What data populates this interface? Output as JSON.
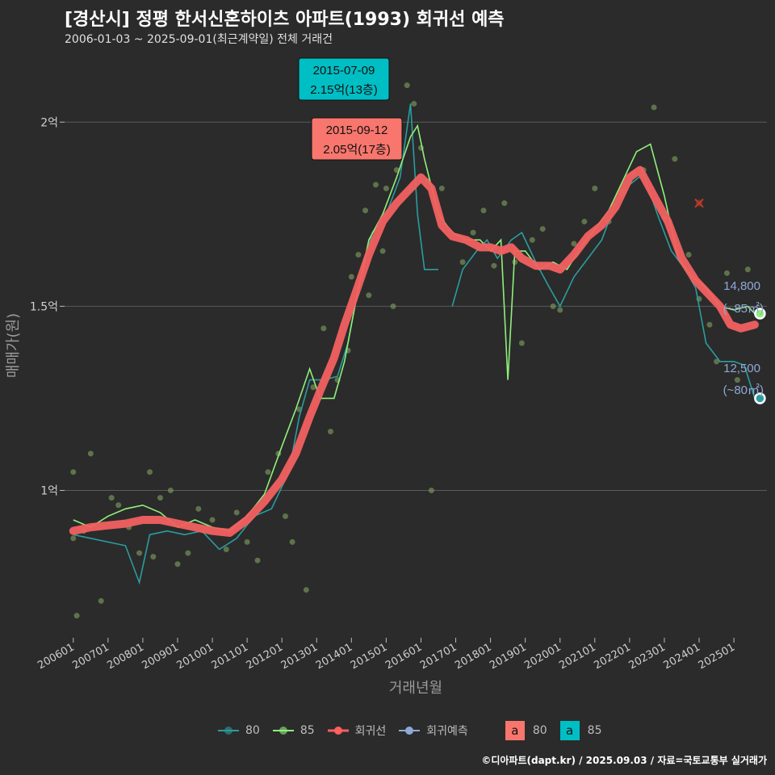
{
  "header": {
    "title": "[경산시] 정평 한서신혼하이츠 아파트(1993) 회귀선 예측",
    "subtitle": "2006-01-03 ~ 2025-09-01(최근계약일) 전체 거래건"
  },
  "footer": "©디아파트(dapt.kr) / 2025.09.03 / 자료=국토교통부 실거래가",
  "legend": {
    "items": [
      {
        "label": "80",
        "color": "#2a9d9f"
      },
      {
        "label": "85",
        "color": "#8ff07a"
      },
      {
        "label": "회귀선",
        "color": "#ff5f5f"
      },
      {
        "label": "회귀예측",
        "color": "#8fa9d8"
      }
    ],
    "boxes": [
      {
        "glyph": "a",
        "label": "80",
        "color": "#f8766d"
      },
      {
        "glyph": "a",
        "label": "85",
        "color": "#00bfc4"
      }
    ]
  },
  "annotations": {
    "max85": {
      "date": "2015-07-09",
      "price": "2.15억(13층)",
      "color": "#00bfc4"
    },
    "max80": {
      "date": "2015-09-12",
      "price": "2.05억(17층)",
      "color": "#f8766d"
    },
    "pred85": {
      "value": "14,800",
      "area": "(~85㎡)"
    },
    "pred80": {
      "value": "12,500",
      "area": "(~80㎡)"
    }
  },
  "colors": {
    "bg": "#2b2b2b",
    "grid": "#5a5a5a",
    "s80": "#2a9d9f",
    "s85": "#8ff07a",
    "reg": "#f26060",
    "pred": "#8fa9d8",
    "points": "#7a9a5c"
  },
  "chart_data": {
    "type": "line",
    "xlabel": "거래년월",
    "ylabel": "매매가(원)",
    "x_ticks": [
      "200601",
      "200701",
      "200801",
      "200901",
      "201001",
      "201101",
      "201201",
      "201301",
      "201401",
      "201501",
      "201601",
      "201701",
      "201801",
      "201901",
      "202001",
      "202101",
      "202201",
      "202301",
      "202401",
      "202501"
    ],
    "y_ticks": [
      {
        "value": 10000,
        "label": "1억"
      },
      {
        "value": 15000,
        "label": "1.5억"
      },
      {
        "value": 20000,
        "label": "2억"
      }
    ],
    "ylim": [
      6000,
      22000
    ],
    "xlim": [
      2005.75,
      2025.95
    ],
    "series": [
      {
        "name": "80",
        "points": [
          [
            2006.0,
            8800
          ],
          [
            2006.5,
            8700
          ],
          [
            2007.0,
            8600
          ],
          [
            2007.5,
            8500
          ],
          [
            2007.9,
            7500
          ],
          [
            2008.2,
            8800
          ],
          [
            2008.7,
            8900
          ],
          [
            2009.2,
            8800
          ],
          [
            2009.7,
            8900
          ],
          [
            2010.2,
            8400
          ],
          [
            2010.7,
            8700
          ],
          [
            2011.2,
            9300
          ],
          [
            2011.7,
            9500
          ],
          [
            2012.2,
            10500
          ],
          [
            2012.5,
            12000
          ],
          [
            2012.8,
            13000
          ],
          [
            2013.2,
            13000
          ],
          [
            2013.6,
            13100
          ],
          [
            2013.9,
            14000
          ],
          [
            2014.2,
            15500
          ],
          [
            2014.6,
            17000
          ],
          [
            2015.0,
            17500
          ],
          [
            2015.4,
            18500
          ],
          [
            2015.7,
            20500
          ],
          [
            2015.9,
            17500
          ],
          [
            2016.1,
            16000
          ],
          [
            2016.5,
            16000
          ]
        ]
      },
      {
        "name": "80b",
        "points": [
          [
            2016.9,
            15000
          ],
          [
            2017.2,
            16000
          ],
          [
            2017.6,
            16500
          ],
          [
            2017.9,
            16800
          ],
          [
            2018.2,
            16300
          ],
          [
            2018.6,
            16800
          ],
          [
            2018.9,
            17000
          ],
          [
            2019.3,
            16200
          ],
          [
            2019.7,
            15500
          ],
          [
            2020.0,
            15000
          ],
          [
            2020.4,
            15800
          ],
          [
            2020.8,
            16300
          ],
          [
            2021.2,
            16800
          ],
          [
            2021.6,
            17800
          ],
          [
            2022.0,
            18300
          ],
          [
            2022.4,
            18600
          ],
          [
            2022.8,
            17500
          ],
          [
            2023.2,
            16500
          ],
          [
            2023.6,
            16000
          ],
          [
            2023.9,
            15500
          ],
          [
            2024.2,
            14000
          ],
          [
            2024.6,
            13500
          ],
          [
            2025.0,
            13500
          ],
          [
            2025.3,
            13400
          ],
          [
            2025.6,
            12500
          ]
        ]
      },
      {
        "name": "85",
        "points": [
          [
            2006.0,
            9200
          ],
          [
            2006.5,
            9000
          ],
          [
            2007.0,
            9300
          ],
          [
            2007.5,
            9500
          ],
          [
            2008.0,
            9600
          ],
          [
            2008.5,
            9400
          ],
          [
            2009.0,
            9000
          ],
          [
            2009.5,
            9200
          ],
          [
            2010.0,
            9000
          ],
          [
            2010.5,
            8900
          ],
          [
            2011.0,
            9300
          ],
          [
            2011.5,
            9900
          ],
          [
            2012.0,
            11200
          ],
          [
            2012.4,
            12200
          ],
          [
            2012.8,
            13300
          ],
          [
            2013.1,
            12500
          ],
          [
            2013.5,
            12500
          ],
          [
            2013.8,
            13500
          ],
          [
            2014.1,
            15000
          ],
          [
            2014.5,
            16800
          ],
          [
            2014.9,
            17500
          ],
          [
            2015.3,
            18500
          ],
          [
            2015.7,
            19600
          ],
          [
            2015.9,
            19900
          ],
          [
            2016.1,
            19000
          ],
          [
            2016.5,
            17500
          ],
          [
            2016.9,
            17000
          ],
          [
            2017.3,
            16800
          ],
          [
            2017.7,
            16800
          ],
          [
            2018.0,
            16500
          ],
          [
            2018.3,
            16800
          ],
          [
            2018.5,
            13000
          ],
          [
            2018.7,
            16500
          ],
          [
            2019.0,
            16500
          ],
          [
            2019.4,
            16000
          ],
          [
            2019.8,
            16200
          ],
          [
            2020.2,
            16000
          ],
          [
            2020.6,
            16600
          ],
          [
            2021.0,
            17100
          ],
          [
            2021.4,
            17600
          ],
          [
            2021.8,
            18400
          ],
          [
            2022.2,
            19200
          ],
          [
            2022.6,
            19400
          ],
          [
            2023.0,
            18000
          ],
          [
            2023.4,
            16300
          ],
          [
            2023.8,
            15800
          ],
          [
            2024.2,
            15500
          ],
          [
            2024.6,
            15000
          ],
          [
            2025.0,
            14900
          ],
          [
            2025.4,
            15000
          ],
          [
            2025.6,
            14800
          ]
        ]
      },
      {
        "name": "회귀선",
        "points": [
          [
            2006.0,
            8900
          ],
          [
            2006.5,
            9000
          ],
          [
            2007.0,
            9050
          ],
          [
            2007.5,
            9100
          ],
          [
            2008.0,
            9200
          ],
          [
            2008.5,
            9200
          ],
          [
            2009.0,
            9100
          ],
          [
            2009.5,
            9000
          ],
          [
            2010.0,
            8900
          ],
          [
            2010.5,
            8850
          ],
          [
            2011.0,
            9200
          ],
          [
            2011.5,
            9700
          ],
          [
            2012.0,
            10300
          ],
          [
            2012.4,
            11000
          ],
          [
            2012.8,
            12000
          ],
          [
            2013.1,
            12700
          ],
          [
            2013.5,
            13600
          ],
          [
            2013.8,
            14500
          ],
          [
            2014.1,
            15300
          ],
          [
            2014.5,
            16400
          ],
          [
            2014.9,
            17300
          ],
          [
            2015.3,
            17800
          ],
          [
            2015.7,
            18200
          ],
          [
            2016.0,
            18500
          ],
          [
            2016.3,
            18200
          ],
          [
            2016.6,
            17200
          ],
          [
            2016.9,
            16900
          ],
          [
            2017.3,
            16800
          ],
          [
            2017.7,
            16600
          ],
          [
            2018.0,
            16600
          ],
          [
            2018.3,
            16500
          ],
          [
            2018.6,
            16600
          ],
          [
            2018.9,
            16300
          ],
          [
            2019.3,
            16100
          ],
          [
            2019.7,
            16100
          ],
          [
            2020.0,
            16000
          ],
          [
            2020.4,
            16400
          ],
          [
            2020.8,
            16900
          ],
          [
            2021.2,
            17200
          ],
          [
            2021.6,
            17700
          ],
          [
            2022.0,
            18500
          ],
          [
            2022.3,
            18700
          ],
          [
            2022.7,
            18000
          ],
          [
            2023.1,
            17300
          ],
          [
            2023.5,
            16300
          ],
          [
            2023.9,
            15700
          ],
          [
            2024.3,
            15300
          ],
          [
            2024.6,
            15000
          ],
          [
            2024.9,
            14500
          ],
          [
            2025.2,
            14400
          ],
          [
            2025.6,
            14500
          ]
        ]
      }
    ],
    "scatter": [
      [
        2006.0,
        8700
      ],
      [
        2006.0,
        10500
      ],
      [
        2006.1,
        6600
      ],
      [
        2006.3,
        8900
      ],
      [
        2006.5,
        11000
      ],
      [
        2006.8,
        7000
      ],
      [
        2007.1,
        9800
      ],
      [
        2007.3,
        9600
      ],
      [
        2007.6,
        9000
      ],
      [
        2007.9,
        8300
      ],
      [
        2008.2,
        10500
      ],
      [
        2008.3,
        8200
      ],
      [
        2008.5,
        9800
      ],
      [
        2008.8,
        10000
      ],
      [
        2009.0,
        8000
      ],
      [
        2009.3,
        8300
      ],
      [
        2009.6,
        9500
      ],
      [
        2010.0,
        9200
      ],
      [
        2010.4,
        8400
      ],
      [
        2010.7,
        9400
      ],
      [
        2011.0,
        8600
      ],
      [
        2011.3,
        8100
      ],
      [
        2011.6,
        10500
      ],
      [
        2011.9,
        11000
      ],
      [
        2012.1,
        9300
      ],
      [
        2012.3,
        8600
      ],
      [
        2012.5,
        12200
      ],
      [
        2012.7,
        7300
      ],
      [
        2012.9,
        12800
      ],
      [
        2013.2,
        14400
      ],
      [
        2013.4,
        11600
      ],
      [
        2013.6,
        13000
      ],
      [
        2013.9,
        13800
      ],
      [
        2014.0,
        15800
      ],
      [
        2014.2,
        16400
      ],
      [
        2014.4,
        17600
      ],
      [
        2014.5,
        15300
      ],
      [
        2014.7,
        18300
      ],
      [
        2014.9,
        16500
      ],
      [
        2015.0,
        18200
      ],
      [
        2015.2,
        15000
      ],
      [
        2015.3,
        18700
      ],
      [
        2015.6,
        21000
      ],
      [
        2015.8,
        20500
      ],
      [
        2016.0,
        19300
      ],
      [
        2016.2,
        18400
      ],
      [
        2016.3,
        10000
      ],
      [
        2016.6,
        18200
      ],
      [
        2017.2,
        16200
      ],
      [
        2017.5,
        17000
      ],
      [
        2017.8,
        17600
      ],
      [
        2018.1,
        16100
      ],
      [
        2018.4,
        17800
      ],
      [
        2018.7,
        16200
      ],
      [
        2018.9,
        14000
      ],
      [
        2019.2,
        16800
      ],
      [
        2019.5,
        17100
      ],
      [
        2019.8,
        15000
      ],
      [
        2020.0,
        14900
      ],
      [
        2020.4,
        16700
      ],
      [
        2020.7,
        17300
      ],
      [
        2021.0,
        18200
      ],
      [
        2021.4,
        17300
      ],
      [
        2021.8,
        18100
      ],
      [
        2022.1,
        18600
      ],
      [
        2022.4,
        18700
      ],
      [
        2022.7,
        20400
      ],
      [
        2023.0,
        17400
      ],
      [
        2023.3,
        19000
      ],
      [
        2023.7,
        16400
      ],
      [
        2024.0,
        15200
      ],
      [
        2024.3,
        14500
      ],
      [
        2024.5,
        13500
      ],
      [
        2024.8,
        15900
      ],
      [
        2025.1,
        13000
      ],
      [
        2025.4,
        16000
      ]
    ],
    "outlier": [
      2024.0,
      17800
    ],
    "pred80_point": [
      2025.75,
      12500
    ],
    "pred85_point": [
      2025.75,
      14800
    ]
  }
}
